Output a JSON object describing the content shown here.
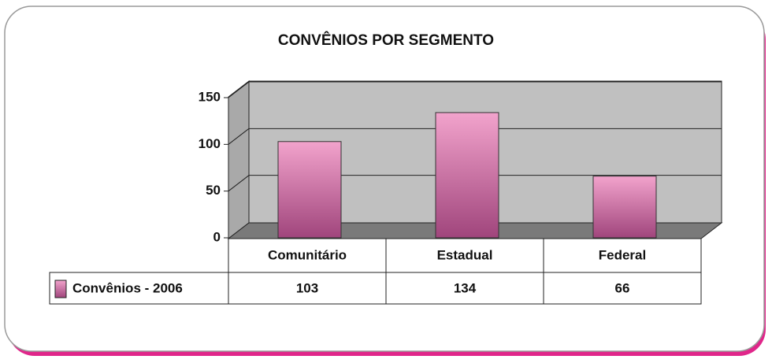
{
  "chart_data": {
    "type": "bar",
    "title": "CONVÊNIOS POR SEGMENTO",
    "categories": [
      "Comunitário",
      "Estadual",
      "Federal"
    ],
    "series": [
      {
        "name": "Convênios - 2006",
        "color": "#a0457c",
        "values": [
          103,
          134,
          66
        ]
      }
    ],
    "ylim": [
      0,
      150
    ],
    "yticks": [
      0,
      50,
      100,
      150
    ],
    "grid": true
  }
}
